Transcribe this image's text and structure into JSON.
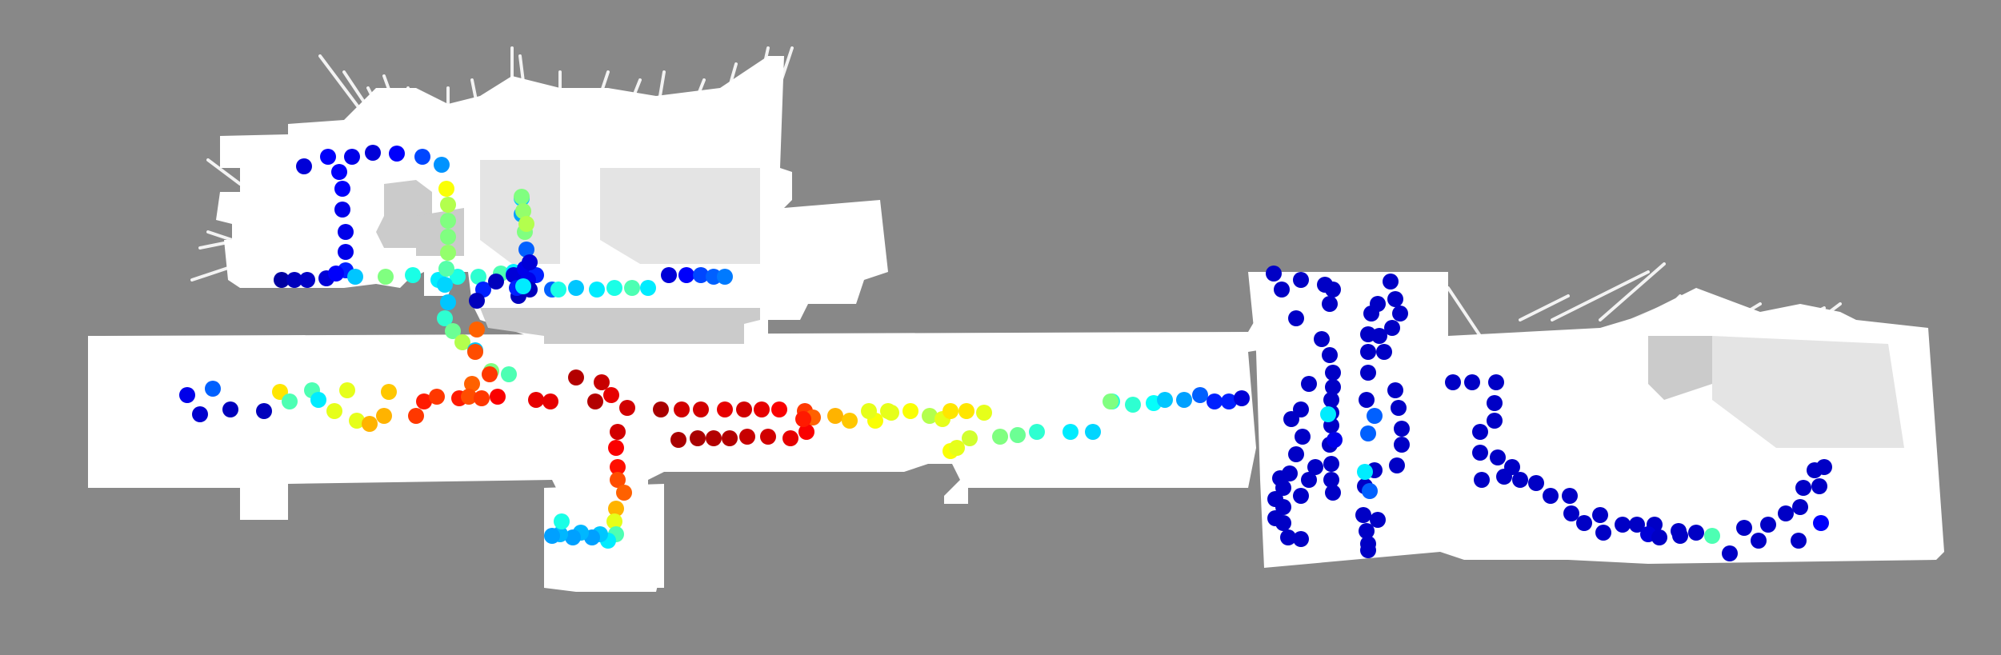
{
  "map": {
    "background_color": "#888888",
    "free_space_color": "#ffffff",
    "obstacle_color": "#cbcbcb",
    "marker_colormap": "jet",
    "colormap_stops": [
      "#00008f",
      "#0000ff",
      "#00a0ff",
      "#00ffff",
      "#80ff80",
      "#ffff00",
      "#ff8000",
      "#ff0000",
      "#800000"
    ]
  },
  "markers": [
    [
      380,
      208,
      0.08
    ],
    [
      410,
      196,
      0.12
    ],
    [
      440,
      196,
      0.1
    ],
    [
      466,
      191,
      0.08
    ],
    [
      496,
      192,
      0.12
    ],
    [
      528,
      196,
      0.18
    ],
    [
      552,
      206,
      0.24
    ],
    [
      424,
      215,
      0.12
    ],
    [
      428,
      236,
      0.12
    ],
    [
      428,
      262,
      0.1
    ],
    [
      432,
      290,
      0.1
    ],
    [
      432,
      315,
      0.1
    ],
    [
      432,
      338,
      0.15
    ],
    [
      352,
      350,
      0.02
    ],
    [
      368,
      350,
      0.05
    ],
    [
      384,
      350,
      0.06
    ],
    [
      408,
      348,
      0.08
    ],
    [
      420,
      342,
      0.12
    ],
    [
      444,
      346,
      0.3
    ],
    [
      482,
      346,
      0.5
    ],
    [
      516,
      344,
      0.4
    ],
    [
      548,
      350,
      0.35
    ],
    [
      572,
      346,
      0.4
    ],
    [
      598,
      346,
      0.42
    ],
    [
      626,
      342,
      0.45
    ],
    [
      642,
      340,
      0.35
    ],
    [
      558,
      236,
      0.62
    ],
    [
      560,
      256,
      0.55
    ],
    [
      560,
      276,
      0.5
    ],
    [
      560,
      296,
      0.5
    ],
    [
      560,
      316,
      0.52
    ],
    [
      558,
      336,
      0.46
    ],
    [
      556,
      356,
      0.32
    ],
    [
      560,
      378,
      0.3
    ],
    [
      556,
      398,
      0.42
    ],
    [
      566,
      414,
      0.48
    ],
    [
      578,
      428,
      0.55
    ],
    [
      594,
      438,
      0.3
    ],
    [
      614,
      464,
      0.5
    ],
    [
      636,
      468,
      0.45
    ],
    [
      604,
      362,
      0.15
    ],
    [
      596,
      376,
      0.05
    ],
    [
      620,
      352,
      0.05
    ],
    [
      642,
      344,
      0.08
    ],
    [
      656,
      336,
      0.1
    ],
    [
      670,
      344,
      0.15
    ],
    [
      690,
      362,
      0.2
    ],
    [
      652,
      248,
      0.3
    ],
    [
      652,
      268,
      0.25
    ],
    [
      656,
      290,
      0.5
    ],
    [
      658,
      312,
      0.2
    ],
    [
      662,
      328,
      0.08
    ],
    [
      660,
      350,
      0.1
    ],
    [
      662,
      362,
      0.05
    ],
    [
      648,
      370,
      0.05
    ],
    [
      698,
      362,
      0.4
    ],
    [
      720,
      360,
      0.3
    ],
    [
      746,
      362,
      0.35
    ],
    [
      768,
      360,
      0.4
    ],
    [
      790,
      360,
      0.45
    ],
    [
      810,
      360,
      0.35
    ],
    [
      836,
      344,
      0.08
    ],
    [
      858,
      344,
      0.12
    ],
    [
      876,
      344,
      0.18
    ],
    [
      892,
      346,
      0.2
    ],
    [
      906,
      346,
      0.22
    ],
    [
      652,
      246,
      0.5
    ],
    [
      654,
      264,
      0.52
    ],
    [
      658,
      280,
      0.55
    ],
    [
      646,
      360,
      0.15
    ],
    [
      654,
      358,
      0.35
    ],
    [
      596,
      412,
      0.78
    ],
    [
      594,
      440,
      0.8
    ],
    [
      612,
      468,
      0.82
    ],
    [
      590,
      480,
      0.78
    ],
    [
      234,
      494,
      0.1
    ],
    [
      266,
      486,
      0.2
    ],
    [
      250,
      518,
      0.07
    ],
    [
      288,
      512,
      0.05
    ],
    [
      330,
      514,
      0.05
    ],
    [
      350,
      490,
      0.65
    ],
    [
      362,
      502,
      0.45
    ],
    [
      390,
      488,
      0.45
    ],
    [
      398,
      500,
      0.35
    ],
    [
      418,
      514,
      0.6
    ],
    [
      434,
      488,
      0.6
    ],
    [
      446,
      526,
      0.6
    ],
    [
      462,
      530,
      0.7
    ],
    [
      480,
      520,
      0.7
    ],
    [
      486,
      490,
      0.68
    ],
    [
      520,
      520,
      0.82
    ],
    [
      530,
      502,
      0.85
    ],
    [
      546,
      496,
      0.82
    ],
    [
      574,
      498,
      0.85
    ],
    [
      586,
      496,
      0.8
    ],
    [
      602,
      498,
      0.82
    ],
    [
      622,
      496,
      0.88
    ],
    [
      670,
      500,
      0.9
    ],
    [
      688,
      502,
      0.9
    ],
    [
      720,
      472,
      0.95
    ],
    [
      744,
      502,
      0.95
    ],
    [
      752,
      478,
      0.93
    ],
    [
      764,
      494,
      0.9
    ],
    [
      784,
      510,
      0.92
    ],
    [
      772,
      540,
      0.92
    ],
    [
      770,
      560,
      0.88
    ],
    [
      772,
      584,
      0.86
    ],
    [
      772,
      600,
      0.8
    ],
    [
      780,
      616,
      0.78
    ],
    [
      770,
      636,
      0.7
    ],
    [
      768,
      652,
      0.6
    ],
    [
      770,
      668,
      0.45
    ],
    [
      760,
      676,
      0.35
    ],
    [
      750,
      668,
      0.3
    ],
    [
      740,
      672,
      0.25
    ],
    [
      726,
      666,
      0.28
    ],
    [
      716,
      672,
      0.25
    ],
    [
      700,
      668,
      0.28
    ],
    [
      690,
      670,
      0.25
    ],
    [
      702,
      652,
      0.4
    ],
    [
      826,
      512,
      0.96
    ],
    [
      852,
      512,
      0.92
    ],
    [
      876,
      512,
      0.92
    ],
    [
      906,
      512,
      0.9
    ],
    [
      930,
      512,
      0.92
    ],
    [
      952,
      512,
      0.9
    ],
    [
      974,
      512,
      0.88
    ],
    [
      1006,
      514,
      0.82
    ],
    [
      1016,
      522,
      0.78
    ],
    [
      1044,
      520,
      0.7
    ],
    [
      1062,
      526,
      0.68
    ],
    [
      1094,
      526,
      0.62
    ],
    [
      1110,
      514,
      0.6
    ],
    [
      1138,
      514,
      0.62
    ],
    [
      848,
      550,
      0.96
    ],
    [
      872,
      548,
      0.96
    ],
    [
      892,
      548,
      0.95
    ],
    [
      912,
      548,
      0.95
    ],
    [
      934,
      546,
      0.93
    ],
    [
      960,
      546,
      0.92
    ],
    [
      988,
      548,
      0.9
    ],
    [
      1008,
      540,
      0.88
    ],
    [
      1004,
      524,
      0.85
    ],
    [
      1086,
      514,
      0.6
    ],
    [
      1114,
      516,
      0.6
    ],
    [
      1162,
      520,
      0.55
    ],
    [
      1178,
      524,
      0.6
    ],
    [
      1188,
      514,
      0.65
    ],
    [
      1208,
      514,
      0.65
    ],
    [
      1230,
      516,
      0.6
    ],
    [
      1188,
      564,
      0.62
    ],
    [
      1196,
      560,
      0.6
    ],
    [
      1212,
      548,
      0.58
    ],
    [
      1250,
      546,
      0.5
    ],
    [
      1272,
      544,
      0.48
    ],
    [
      1296,
      540,
      0.42
    ],
    [
      1338,
      540,
      0.35
    ],
    [
      1366,
      540,
      0.32
    ],
    [
      1390,
      502,
      0.4
    ],
    [
      1388,
      502,
      0.5
    ],
    [
      1416,
      506,
      0.42
    ],
    [
      1442,
      504,
      0.38
    ],
    [
      1456,
      500,
      0.3
    ],
    [
      1480,
      500,
      0.25
    ],
    [
      1500,
      494,
      0.2
    ],
    [
      1518,
      502,
      0.15
    ],
    [
      1536,
      502,
      0.15
    ],
    [
      1552,
      498,
      0.08
    ],
    [
      1592,
      342,
      0.06
    ],
    [
      1602,
      362,
      0.06
    ],
    [
      1626,
      350,
      0.06
    ],
    [
      1656,
      356,
      0.06
    ],
    [
      1666,
      362,
      0.06
    ],
    [
      1620,
      398,
      0.06
    ],
    [
      1662,
      380,
      0.06
    ],
    [
      1652,
      424,
      0.06
    ],
    [
      1662,
      444,
      0.06
    ],
    [
      1666,
      466,
      0.06
    ],
    [
      1666,
      484,
      0.06
    ],
    [
      1664,
      500,
      0.06
    ],
    [
      1664,
      516,
      0.06
    ],
    [
      1664,
      532,
      0.06
    ],
    [
      1662,
      556,
      0.06
    ],
    [
      1664,
      580,
      0.06
    ],
    [
      1664,
      600,
      0.06
    ],
    [
      1666,
      616,
      0.06
    ],
    [
      1636,
      480,
      0.06
    ],
    [
      1626,
      512,
      0.06
    ],
    [
      1614,
      524,
      0.06
    ],
    [
      1628,
      546,
      0.06
    ],
    [
      1620,
      568,
      0.06
    ],
    [
      1612,
      592,
      0.06
    ],
    [
      1604,
      610,
      0.06
    ],
    [
      1604,
      634,
      0.06
    ],
    [
      1604,
      654,
      0.06
    ],
    [
      1626,
      674,
      0.06
    ],
    [
      1610,
      672,
      0.06
    ],
    [
      1594,
      648,
      0.06
    ],
    [
      1594,
      624,
      0.06
    ],
    [
      1600,
      598,
      0.06
    ],
    [
      1626,
      620,
      0.06
    ],
    [
      1636,
      600,
      0.06
    ],
    [
      1644,
      584,
      0.06
    ],
    [
      1660,
      518,
      0.35
    ],
    [
      1668,
      550,
      0.1
    ],
    [
      1710,
      542,
      0.2
    ],
    [
      1718,
      520,
      0.2
    ],
    [
      1708,
      500,
      0.06
    ],
    [
      1710,
      466,
      0.06
    ],
    [
      1710,
      440,
      0.06
    ],
    [
      1710,
      418,
      0.06
    ],
    [
      1738,
      352,
      0.06
    ],
    [
      1744,
      374,
      0.06
    ],
    [
      1750,
      392,
      0.06
    ],
    [
      1740,
      410,
      0.06
    ],
    [
      1714,
      392,
      0.06
    ],
    [
      1722,
      380,
      0.06
    ],
    [
      1724,
      420,
      0.06
    ],
    [
      1730,
      440,
      0.06
    ],
    [
      1744,
      488,
      0.06
    ],
    [
      1748,
      510,
      0.06
    ],
    [
      1752,
      536,
      0.06
    ],
    [
      1752,
      556,
      0.06
    ],
    [
      1746,
      582,
      0.06
    ],
    [
      1718,
      588,
      0.06
    ],
    [
      1706,
      608,
      0.06
    ],
    [
      1704,
      644,
      0.06
    ],
    [
      1708,
      664,
      0.06
    ],
    [
      1710,
      680,
      0.06
    ],
    [
      1710,
      688,
      0.06
    ],
    [
      1722,
      650,
      0.06
    ],
    [
      1712,
      614,
      0.2
    ],
    [
      1706,
      590,
      0.35
    ],
    [
      1816,
      478,
      0.06
    ],
    [
      1840,
      478,
      0.06
    ],
    [
      1870,
      478,
      0.06
    ],
    [
      1868,
      504,
      0.06
    ],
    [
      1868,
      526,
      0.06
    ],
    [
      1850,
      566,
      0.06
    ],
    [
      1850,
      540,
      0.06
    ],
    [
      1852,
      600,
      0.06
    ],
    [
      1872,
      572,
      0.06
    ],
    [
      1890,
      584,
      0.06
    ],
    [
      1880,
      596,
      0.06
    ],
    [
      1900,
      600,
      0.06
    ],
    [
      1920,
      604,
      0.06
    ],
    [
      1938,
      620,
      0.06
    ],
    [
      1962,
      620,
      0.06
    ],
    [
      1964,
      642,
      0.06
    ],
    [
      1980,
      654,
      0.06
    ],
    [
      2004,
      666,
      0.06
    ],
    [
      2028,
      656,
      0.06
    ],
    [
      2046,
      656,
      0.06
    ],
    [
      2068,
      656,
      0.06
    ],
    [
      2098,
      664,
      0.06
    ],
    [
      2100,
      670,
      0.06
    ],
    [
      2120,
      666,
      0.06
    ],
    [
      2140,
      670,
      0.45
    ],
    [
      2162,
      692,
      0.06
    ],
    [
      2180,
      660,
      0.06
    ],
    [
      2198,
      676,
      0.06
    ],
    [
      2210,
      656,
      0.06
    ],
    [
      2232,
      642,
      0.06
    ],
    [
      2248,
      676,
      0.06
    ],
    [
      2254,
      610,
      0.06
    ],
    [
      2250,
      634,
      0.06
    ],
    [
      2268,
      588,
      0.06
    ],
    [
      2274,
      608,
      0.06
    ],
    [
      2280,
      584,
      0.06
    ],
    [
      2276,
      654,
      0.12
    ],
    [
      2060,
      668,
      0.08
    ],
    [
      2074,
      672,
      0.06
    ],
    [
      2000,
      644,
      0.06
    ]
  ]
}
